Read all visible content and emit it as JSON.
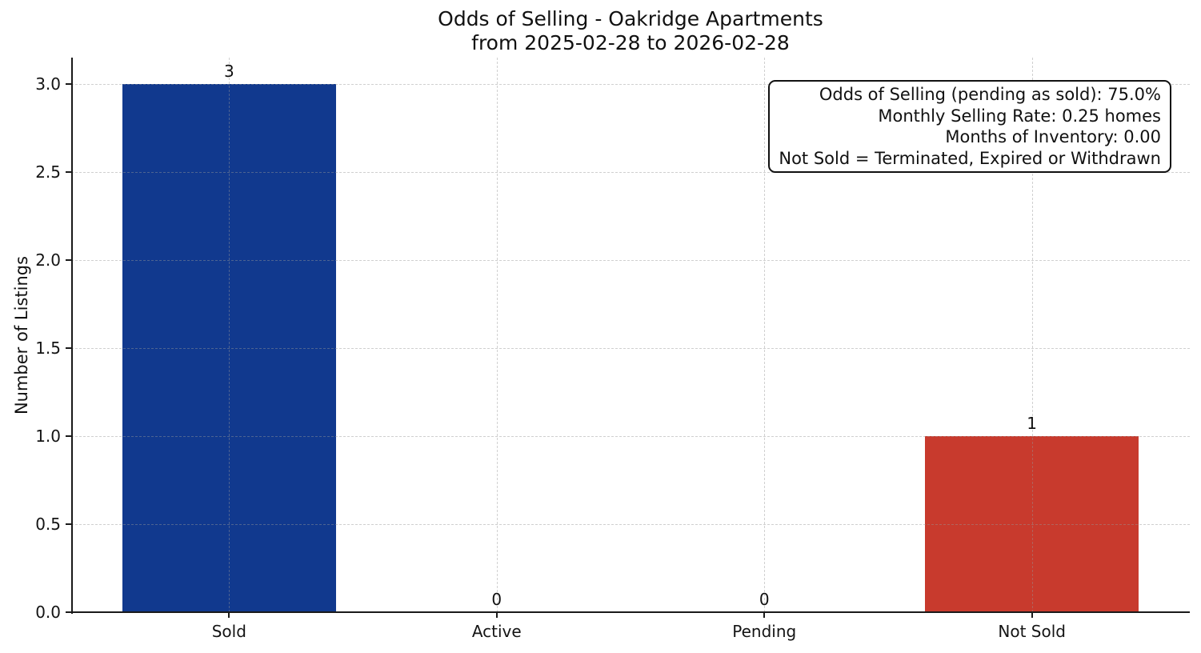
{
  "chart_data": {
    "type": "bar",
    "title": "Odds of Selling - Oakridge Apartments",
    "subtitle": "from 2025-02-28 to 2026-02-28",
    "categories": [
      "Sold",
      "Active",
      "Pending",
      "Not Sold"
    ],
    "values": [
      3,
      0,
      0,
      1
    ],
    "value_labels": [
      "3",
      "0",
      "0",
      "1"
    ],
    "bar_colors": [
      "#11398e",
      null,
      null,
      "#c83a2d"
    ],
    "xlabel": "",
    "ylabel": "Number of Listings",
    "ylim": [
      0,
      3.15
    ],
    "yticks": [
      0.0,
      0.5,
      1.0,
      1.5,
      2.0,
      2.5,
      3.0
    ],
    "grid": true,
    "legend": null,
    "annotation": {
      "lines": [
        "Odds of Selling (pending as sold): 75.0%",
        "Monthly Selling Rate: 0.25 homes",
        "Months of Inventory: 0.00",
        "Not Sold = Terminated, Expired or Withdrawn"
      ]
    }
  }
}
